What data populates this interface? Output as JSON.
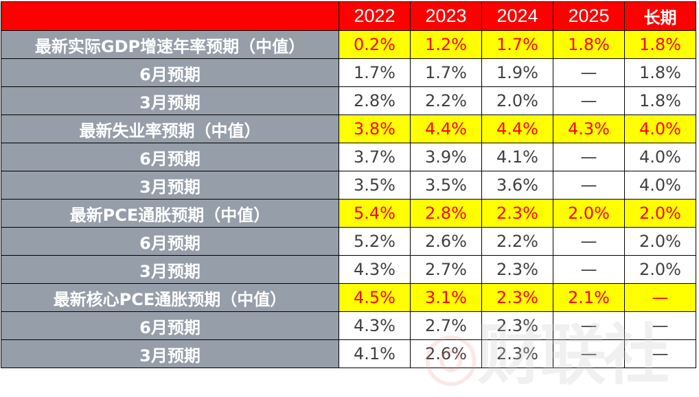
{
  "header": {
    "columns": [
      "2022",
      "2023",
      "2024",
      "2025",
      "长期"
    ]
  },
  "rows": [
    {
      "label": "最新实际GDP增速年率预期（中值）",
      "values": [
        "0.2%",
        "1.2%",
        "1.7%",
        "1.8%",
        "1.8%"
      ],
      "highlight": true
    },
    {
      "label": "6月预期",
      "values": [
        "1.7%",
        "1.7%",
        "1.9%",
        "—",
        "1.8%"
      ],
      "highlight": false
    },
    {
      "label": "3月预期",
      "values": [
        "2.8%",
        "2.2%",
        "2.0%",
        "—",
        "1.8%"
      ],
      "highlight": false
    },
    {
      "label": "最新失业率预期（中值）",
      "values": [
        "3.8%",
        "4.4%",
        "4.4%",
        "4.3%",
        "4.0%"
      ],
      "highlight": true
    },
    {
      "label": "6月预期",
      "values": [
        "3.7%",
        "3.9%",
        "4.1%",
        "—",
        "4.0%"
      ],
      "highlight": false
    },
    {
      "label": "3月预期",
      "values": [
        "3.5%",
        "3.5%",
        "3.6%",
        "—",
        "4.0%"
      ],
      "highlight": false
    },
    {
      "label": "最新PCE通胀预期（中值）",
      "values": [
        "5.4%",
        "2.8%",
        "2.3%",
        "2.0%",
        "2.0%"
      ],
      "highlight": true
    },
    {
      "label": "6月预期",
      "values": [
        "5.2%",
        "2.6%",
        "2.2%",
        "—",
        "2.0%"
      ],
      "highlight": false
    },
    {
      "label": "3月预期",
      "values": [
        "4.3%",
        "2.7%",
        "2.3%",
        "—",
        "2.0%"
      ],
      "highlight": false
    },
    {
      "label": "最新核心PCE通胀预期（中值）",
      "values": [
        "4.5%",
        "3.1%",
        "2.3%",
        "2.1%",
        "—"
      ],
      "highlight": true
    },
    {
      "label": "6月预期",
      "values": [
        "4.3%",
        "2.7%",
        "2.3%",
        "—",
        "—"
      ],
      "highlight": false
    },
    {
      "label": "3月预期",
      "values": [
        "4.1%",
        "2.6%",
        "2.3%",
        "—",
        "—"
      ],
      "highlight": false
    }
  ],
  "watermark": "财联社",
  "colors": {
    "header_bg": "#ff0000",
    "label_bg": "#969ea9",
    "highlight_bg": "#ffff00",
    "highlight_text": "#ff0000"
  }
}
